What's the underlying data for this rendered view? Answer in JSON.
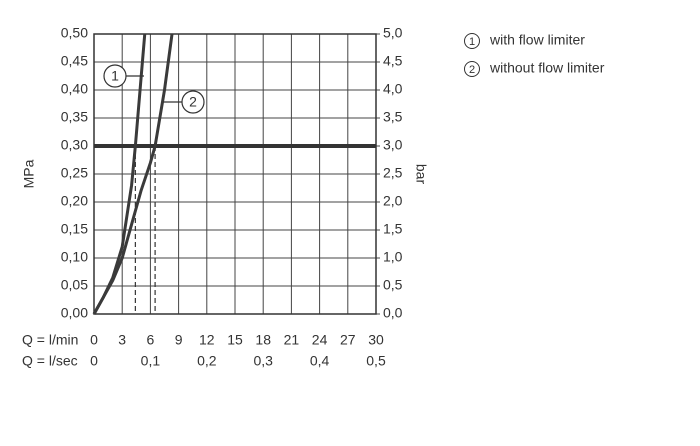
{
  "chart_data": {
    "type": "line",
    "y_label": "MPa",
    "y2_label": "bar",
    "x_label": "Q = l/min",
    "x2_label": "Q = l/sec",
    "xlim": [
      0,
      30
    ],
    "xticks": [
      0,
      3,
      6,
      9,
      12,
      15,
      18,
      21,
      24,
      27,
      30
    ],
    "x2lim": [
      0,
      0.5
    ],
    "x2ticks": [
      0,
      {
        "value": 0.1,
        "label": "0,1"
      },
      {
        "value": 0.2,
        "label": "0,2"
      },
      {
        "value": 0.3,
        "label": "0,3"
      },
      {
        "value": 0.4,
        "label": "0,4"
      },
      {
        "value": 0.5,
        "label": "0,5"
      }
    ],
    "ylim": [
      0,
      0.5
    ],
    "yticks": [
      {
        "value": 0,
        "label": "0,00"
      },
      {
        "value": 0.05,
        "label": "0,05"
      },
      {
        "value": 0.1,
        "label": "0,10"
      },
      {
        "value": 0.15,
        "label": "0,15"
      },
      {
        "value": 0.2,
        "label": "0,20"
      },
      {
        "value": 0.25,
        "label": "0,25"
      },
      {
        "value": 0.3,
        "label": "0,30"
      },
      {
        "value": 0.35,
        "label": "0,35"
      },
      {
        "value": 0.4,
        "label": "0,40"
      },
      {
        "value": 0.45,
        "label": "0,45"
      },
      {
        "value": 0.5,
        "label": "0,50"
      }
    ],
    "y2lim": [
      0,
      5
    ],
    "y2ticks": [
      {
        "value": 0,
        "label": "0,0"
      },
      {
        "value": 0.5,
        "label": "0,5"
      },
      {
        "value": 1,
        "label": "1,0"
      },
      {
        "value": 1.5,
        "label": "1,5"
      },
      {
        "value": 2,
        "label": "2,0"
      },
      {
        "value": 2.5,
        "label": "2,5"
      },
      {
        "value": 3,
        "label": "3,0"
      },
      {
        "value": 3.5,
        "label": "3,5"
      },
      {
        "value": 4,
        "label": "4,0"
      },
      {
        "value": 4.5,
        "label": "4,5"
      },
      {
        "value": 5,
        "label": "5,0"
      }
    ],
    "grid": true,
    "hline": 0.3,
    "dashed_x": [
      4.4,
      6.5
    ],
    "series": [
      {
        "name": "with flow limiter",
        "marker": "1",
        "color": "#3a3a3a",
        "x": [
          0,
          1,
          2,
          3,
          4,
          4.4,
          5,
          5.4
        ],
        "values": [
          0,
          0.03,
          0.065,
          0.12,
          0.23,
          0.3,
          0.42,
          0.5
        ]
      },
      {
        "name": "without flow limiter",
        "marker": "2",
        "color": "#3a3a3a",
        "x": [
          0,
          1,
          2,
          3,
          4,
          5,
          6,
          6.5,
          7.5,
          8.3
        ],
        "values": [
          0,
          0.03,
          0.06,
          0.1,
          0.16,
          0.22,
          0.27,
          0.3,
          0.4,
          0.5
        ]
      }
    ]
  }
}
